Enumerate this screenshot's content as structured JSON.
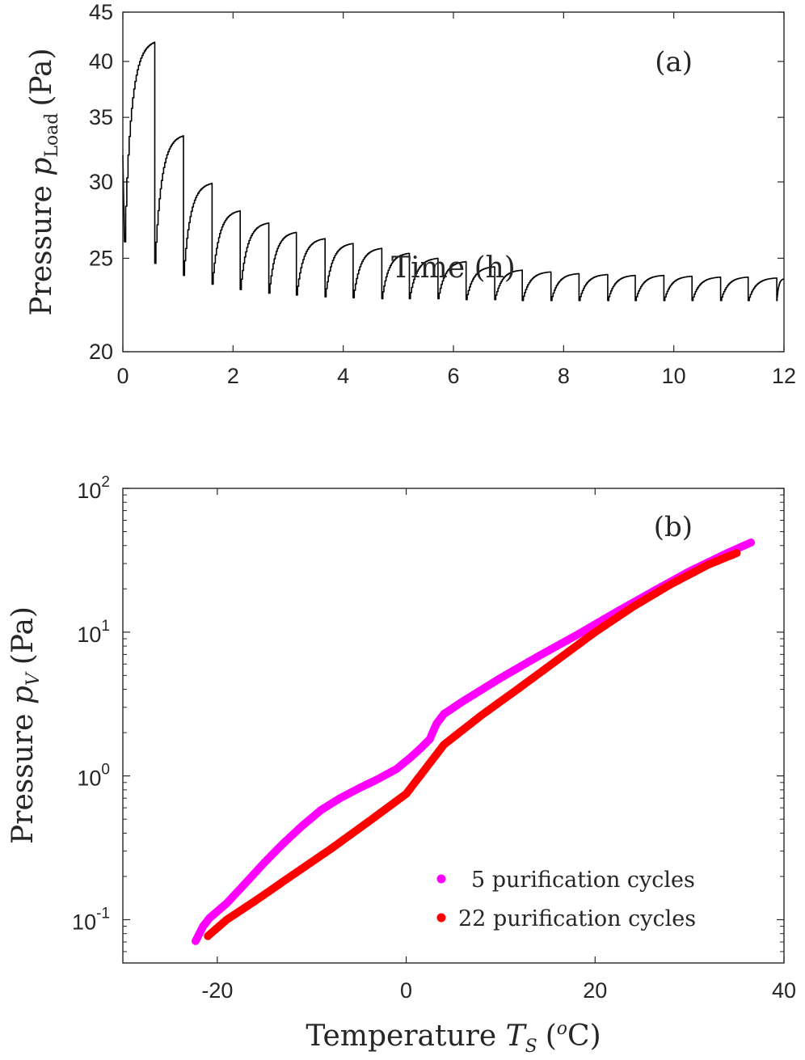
{
  "chart_data": [
    {
      "type": "line",
      "panel_label": "(a)",
      "xlabel": "Time (h)",
      "ylabel_main": "Pressure",
      "ylabel_symbol": "p",
      "ylabel_subscript": "Load",
      "ylabel_unit": "(Pa)",
      "xlim": [
        0,
        12
      ],
      "ylim": [
        20,
        45
      ],
      "yscale": "log",
      "xticks": [
        0,
        2,
        4,
        6,
        8,
        10,
        12
      ],
      "yticks": [
        20,
        25,
        30,
        35,
        40,
        45
      ],
      "series": [
        {
          "name": "p_Load",
          "color": "#000000",
          "cycles": [
            {
              "start": 0.0,
              "end": 0.58,
              "min": 26.0,
              "peak": 41.9
            },
            {
              "start": 0.58,
              "end": 1.1,
              "min": 24.7,
              "peak": 33.5
            },
            {
              "start": 1.1,
              "end": 1.62,
              "min": 24.0,
              "peak": 29.9
            },
            {
              "start": 1.62,
              "end": 2.13,
              "min": 23.5,
              "peak": 28.0
            },
            {
              "start": 2.13,
              "end": 2.65,
              "min": 23.2,
              "peak": 27.2
            },
            {
              "start": 2.65,
              "end": 3.15,
              "min": 23.0,
              "peak": 26.6
            },
            {
              "start": 3.15,
              "end": 3.67,
              "min": 22.9,
              "peak": 26.2
            },
            {
              "start": 3.67,
              "end": 4.18,
              "min": 22.8,
              "peak": 25.9
            },
            {
              "start": 4.18,
              "end": 4.7,
              "min": 22.75,
              "peak": 25.6
            },
            {
              "start": 4.7,
              "end": 5.2,
              "min": 22.7,
              "peak": 25.3
            },
            {
              "start": 5.2,
              "end": 5.72,
              "min": 22.7,
              "peak": 25.0
            },
            {
              "start": 5.72,
              "end": 6.23,
              "min": 22.7,
              "peak": 24.8
            },
            {
              "start": 6.23,
              "end": 6.75,
              "min": 22.65,
              "peak": 24.5
            },
            {
              "start": 6.75,
              "end": 7.25,
              "min": 22.65,
              "peak": 24.3
            },
            {
              "start": 7.25,
              "end": 7.77,
              "min": 22.6,
              "peak": 24.2
            },
            {
              "start": 7.77,
              "end": 8.28,
              "min": 22.6,
              "peak": 24.1
            },
            {
              "start": 8.28,
              "end": 8.8,
              "min": 22.6,
              "peak": 24.05
            },
            {
              "start": 8.8,
              "end": 9.3,
              "min": 22.6,
              "peak": 24.0
            },
            {
              "start": 9.3,
              "end": 9.82,
              "min": 22.6,
              "peak": 24.0
            },
            {
              "start": 9.82,
              "end": 10.33,
              "min": 22.6,
              "peak": 23.95
            },
            {
              "start": 10.33,
              "end": 10.85,
              "min": 22.6,
              "peak": 23.9
            },
            {
              "start": 10.85,
              "end": 11.35,
              "min": 22.6,
              "peak": 23.9
            },
            {
              "start": 11.35,
              "end": 11.87,
              "min": 22.6,
              "peak": 23.85
            },
            {
              "start": 11.87,
              "end": 12.0,
              "min": 22.6,
              "peak": 23.8
            }
          ]
        }
      ]
    },
    {
      "type": "scatter",
      "panel_label": "(b)",
      "xlabel_main": "Temperature",
      "xlabel_symbol": "T",
      "xlabel_subscript": "S",
      "xlabel_unit_open": "(",
      "xlabel_unit_sup": "o",
      "xlabel_unit_close": "C)",
      "ylabel_main": "Pressure",
      "ylabel_symbol": "p",
      "ylabel_subscript": "V",
      "ylabel_unit": "(Pa)",
      "xlim": [
        -30,
        40
      ],
      "ylim": [
        0.05,
        100
      ],
      "yscale": "log",
      "xticks": [
        -20,
        0,
        20,
        40
      ],
      "yticks": [
        {
          "base": "10",
          "exp": "-1",
          "value": 0.1
        },
        {
          "base": "10",
          "exp": "0",
          "value": 1
        },
        {
          "base": "10",
          "exp": "1",
          "value": 10
        },
        {
          "base": "10",
          "exp": "2",
          "value": 100
        }
      ],
      "legend_position": "bottom-right",
      "series": [
        {
          "name": "5 purification cycles",
          "color": "#ff00ff",
          "points": [
            [
              -22.3,
              0.071
            ],
            [
              -21.5,
              0.09
            ],
            [
              -20.8,
              0.103
            ],
            [
              -19,
              0.13
            ],
            [
              -17,
              0.18
            ],
            [
              -15,
              0.25
            ],
            [
              -13,
              0.34
            ],
            [
              -11,
              0.45
            ],
            [
              -9,
              0.58
            ],
            [
              -7,
              0.7
            ],
            [
              -5,
              0.82
            ],
            [
              -3,
              0.95
            ],
            [
              -1,
              1.12
            ],
            [
              0.5,
              1.35
            ],
            [
              1.5,
              1.55
            ],
            [
              2.5,
              1.8
            ],
            [
              3.2,
              2.3
            ],
            [
              4,
              2.7
            ],
            [
              6,
              3.3
            ],
            [
              10,
              4.8
            ],
            [
              14,
              6.8
            ],
            [
              18,
              9.5
            ],
            [
              22,
              13.5
            ],
            [
              26,
              19
            ],
            [
              30,
              26.5
            ],
            [
              34,
              35.5
            ],
            [
              36.5,
              42
            ]
          ]
        },
        {
          "name": "22 purification cycles",
          "color": "#ff0000",
          "points": [
            [
              -21,
              0.077
            ],
            [
              -19,
              0.1
            ],
            [
              -16,
              0.135
            ],
            [
              -12,
              0.205
            ],
            [
              -8,
              0.31
            ],
            [
              -4,
              0.48
            ],
            [
              0,
              0.75
            ],
            [
              4,
              1.65
            ],
            [
              8,
              2.65
            ],
            [
              12,
              4.1
            ],
            [
              16,
              6.4
            ],
            [
              20,
              10.0
            ],
            [
              24,
              15.0
            ],
            [
              28,
              21.5
            ],
            [
              32,
              29.5
            ],
            [
              35,
              35.5
            ]
          ]
        }
      ]
    }
  ]
}
